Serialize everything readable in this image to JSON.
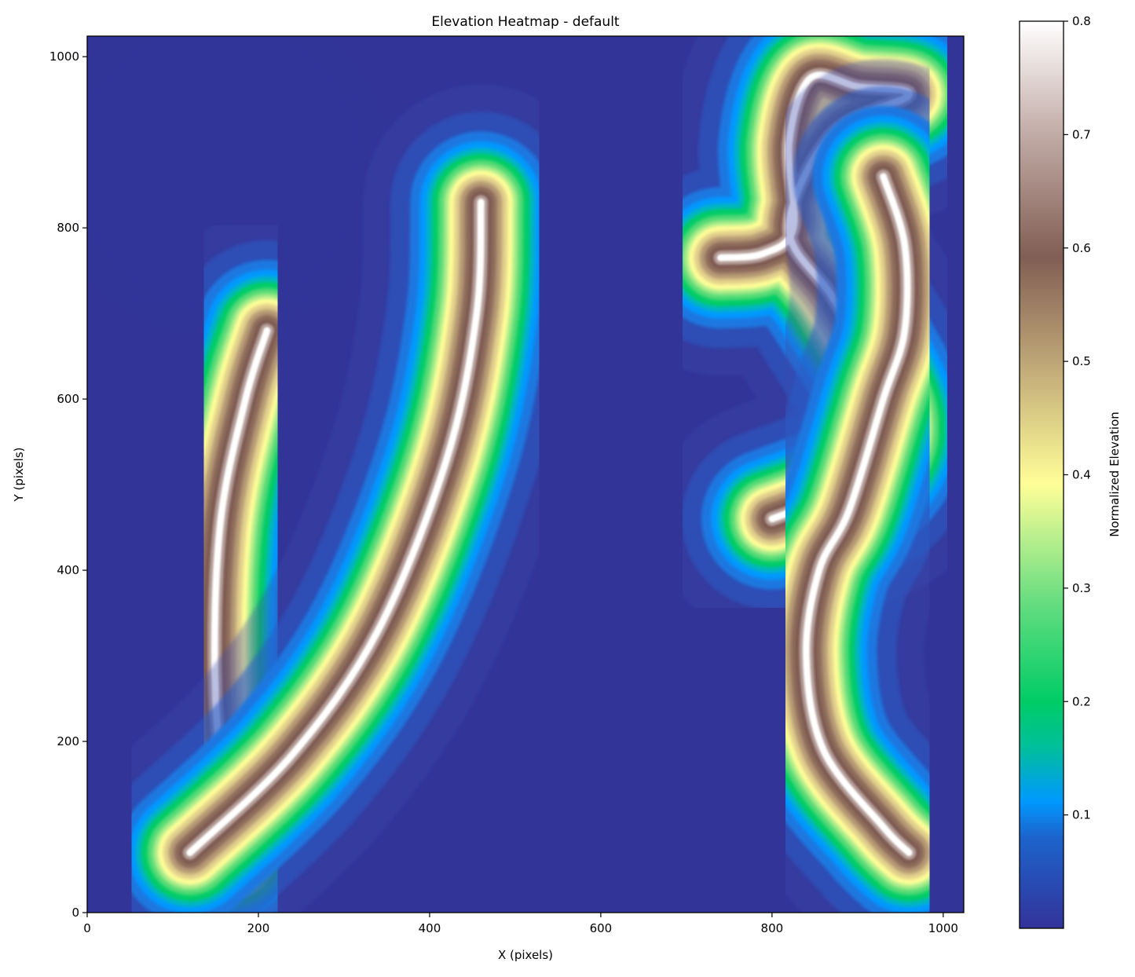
{
  "chart_data": {
    "type": "heatmap",
    "title": "Elevation Heatmap - default",
    "xlabel": "X (pixels)",
    "ylabel": "Y (pixels)",
    "xlim": [
      0,
      1024
    ],
    "ylim": [
      0,
      1024
    ],
    "x_ticks": [
      0,
      200,
      400,
      600,
      800,
      1000
    ],
    "y_ticks": [
      0,
      200,
      400,
      600,
      800,
      1000
    ],
    "grid": false,
    "colormap": "terrain",
    "colorbar": {
      "label": "Normalized Elevation",
      "range": [
        0.0,
        0.8
      ],
      "ticks": [
        0.1,
        0.2,
        0.3,
        0.4,
        0.5,
        0.6,
        0.7,
        0.8
      ],
      "tick_labels": [
        "0.1",
        "0.2",
        "0.3",
        "0.4",
        "0.5",
        "0.6",
        "0.7",
        "0.8"
      ]
    },
    "ridges": [
      {
        "points": [
          [
            170,
            65
          ],
          [
            150,
            250
          ],
          [
            155,
            450
          ],
          [
            185,
            600
          ],
          [
            210,
            680
          ]
        ]
      },
      {
        "points": [
          [
            120,
            70
          ],
          [
            240,
            185
          ],
          [
            340,
            330
          ],
          [
            420,
            530
          ],
          [
            455,
            700
          ],
          [
            460,
            830
          ]
        ]
      },
      {
        "points": [
          [
            740,
            765
          ],
          [
            790,
            770
          ],
          [
            825,
            800
          ],
          [
            820,
            900
          ],
          [
            845,
            975
          ],
          [
            900,
            965
          ],
          [
            960,
            955
          ],
          [
            870,
            910
          ],
          [
            820,
            800
          ],
          [
            870,
            720
          ],
          [
            930,
            620
          ],
          [
            945,
            560
          ],
          [
            920,
            510
          ],
          [
            880,
            490
          ],
          [
            800,
            460
          ]
        ]
      },
      {
        "points": [
          [
            930,
            860
          ],
          [
            955,
            780
          ],
          [
            955,
            680
          ],
          [
            930,
            600
          ],
          [
            890,
            470
          ],
          [
            855,
            400
          ],
          [
            840,
            300
          ],
          [
            860,
            190
          ],
          [
            930,
            100
          ],
          [
            960,
            70
          ]
        ]
      }
    ]
  }
}
